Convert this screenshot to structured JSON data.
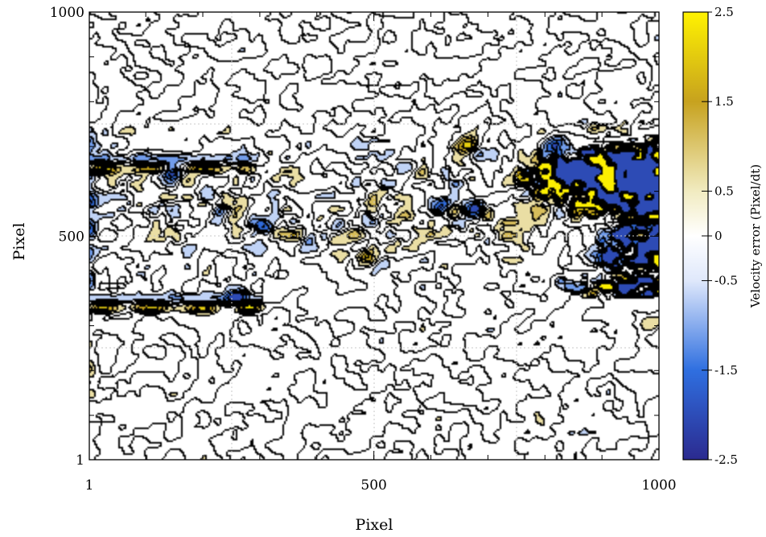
{
  "chart_data": {
    "type": "heatmap",
    "subtype": "filled-contour",
    "title": "",
    "xlabel": "Pixel",
    "ylabel": "Pixel",
    "xlim": [
      1,
      1000
    ],
    "ylim": [
      1,
      1000
    ],
    "x_ticks": [
      {
        "value": 1,
        "label": "1"
      },
      {
        "value": 500,
        "label": "500"
      },
      {
        "value": 1000,
        "label": "1000"
      }
    ],
    "y_ticks": [
      {
        "value": 1,
        "label": "1"
      },
      {
        "value": 500,
        "label": "500"
      },
      {
        "value": 1000,
        "label": "1000"
      }
    ],
    "grid": true,
    "contour_lines": true,
    "colorbar": {
      "label": "Velocity error (Pixel/dt)",
      "range": [
        -2.5,
        2.5
      ],
      "ticks": [
        {
          "value": 2.5,
          "label": "2.5"
        },
        {
          "value": 1.5,
          "label": "1.5"
        },
        {
          "value": 0.5,
          "label": "0.5"
        },
        {
          "value": 0,
          "label": "0"
        },
        {
          "value": -0.5,
          "label": "-0.5"
        },
        {
          "value": -1.5,
          "label": "-1.5"
        },
        {
          "value": -2.5,
          "label": "-2.5"
        }
      ],
      "colormap": [
        {
          "value": -2.5,
          "color": "#2b2a8f"
        },
        {
          "value": -1.5,
          "color": "#2f6fe0"
        },
        {
          "value": -0.5,
          "color": "#dfe8fb"
        },
        {
          "value": 0,
          "color": "#ffffff"
        },
        {
          "value": 0.5,
          "color": "#f1ebc0"
        },
        {
          "value": 1.5,
          "color": "#c7a21e"
        },
        {
          "value": 2.5,
          "color": "#fff200"
        }
      ]
    },
    "features": [
      {
        "x": 1,
        "y": 650,
        "kind": "band",
        "len": 260,
        "sign": 1,
        "strength": 2.2
      },
      {
        "x": 1,
        "y": 338,
        "kind": "band",
        "len": 280,
        "sign": 1,
        "strength": 2.3
      },
      {
        "x": 1,
        "y": 500,
        "kind": "vband",
        "len": 420,
        "sign": -1,
        "strength": 1.6
      },
      {
        "x": 1,
        "y": 230,
        "kind": "vband",
        "len": 160,
        "sign": 1,
        "strength": 1.2
      },
      {
        "x": 150,
        "y": 640,
        "kind": "blob",
        "sign": -1,
        "strength": 2.4
      },
      {
        "x": 230,
        "y": 550,
        "kind": "blob",
        "sign": -1,
        "strength": 2.0
      },
      {
        "x": 270,
        "y": 575,
        "kind": "blob",
        "sign": 1,
        "strength": 1.6
      },
      {
        "x": 310,
        "y": 520,
        "kind": "blob",
        "sign": -1,
        "strength": 1.8
      },
      {
        "x": 260,
        "y": 360,
        "kind": "blob",
        "sign": -1,
        "strength": 2.0
      },
      {
        "x": 370,
        "y": 500,
        "kind": "blob",
        "sign": 1,
        "strength": 1.7
      },
      {
        "x": 440,
        "y": 520,
        "kind": "blob",
        "sign": -1,
        "strength": 1.9
      },
      {
        "x": 490,
        "y": 450,
        "kind": "blob",
        "sign": 1,
        "strength": 2.2
      },
      {
        "x": 560,
        "y": 650,
        "kind": "blob",
        "sign": -1,
        "strength": 1.5
      },
      {
        "x": 620,
        "y": 570,
        "kind": "blob",
        "sign": -1,
        "strength": 2.2
      },
      {
        "x": 680,
        "y": 560,
        "kind": "blob",
        "sign": -1,
        "strength": 2.4
      },
      {
        "x": 665,
        "y": 700,
        "kind": "blob",
        "sign": 1,
        "strength": 2.1
      },
      {
        "x": 760,
        "y": 640,
        "kind": "blob",
        "sign": 1,
        "strength": 1.8
      },
      {
        "x": 820,
        "y": 700,
        "kind": "blob",
        "sign": -1,
        "strength": 2.2
      },
      {
        "x": 870,
        "y": 600,
        "kind": "blob",
        "sign": 1,
        "strength": 1.6
      },
      {
        "x": 920,
        "y": 440,
        "kind": "blob",
        "sign": -1,
        "strength": 1.9
      },
      {
        "x": 975,
        "y": 560,
        "kind": "blob",
        "sign": -1,
        "strength": 2.3
      },
      {
        "x": 990,
        "y": 300,
        "kind": "blob",
        "sign": 1,
        "strength": 1.3
      }
    ]
  }
}
